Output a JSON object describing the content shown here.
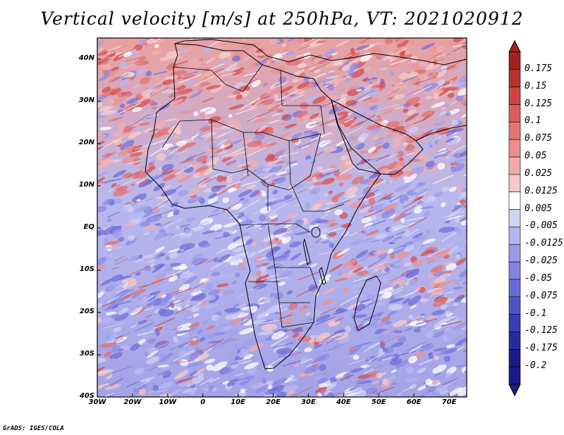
{
  "title": "Vertical velocity [m/s] at 250hPa, VT: 2021020912",
  "footer": "GrADS: IGES/COLA",
  "map": {
    "projection": "latlon",
    "lon_range": [
      -30,
      75
    ],
    "lat_range": [
      -40,
      45
    ],
    "lat_ticks": [
      {
        "value": 40,
        "label": "40N"
      },
      {
        "value": 30,
        "label": "30N"
      },
      {
        "value": 20,
        "label": "20N"
      },
      {
        "value": 10,
        "label": "10N"
      },
      {
        "value": 0,
        "label": "EQ"
      },
      {
        "value": -10,
        "label": "10S"
      },
      {
        "value": -20,
        "label": "20S"
      },
      {
        "value": -30,
        "label": "30S"
      },
      {
        "value": -40,
        "label": "40S"
      }
    ],
    "lon_ticks": [
      {
        "value": -30,
        "label": "30W"
      },
      {
        "value": -20,
        "label": "20W"
      },
      {
        "value": -10,
        "label": "10W"
      },
      {
        "value": 0,
        "label": "0"
      },
      {
        "value": 10,
        "label": "10E"
      },
      {
        "value": 20,
        "label": "20E"
      },
      {
        "value": 30,
        "label": "30E"
      },
      {
        "value": 40,
        "label": "40E"
      },
      {
        "value": 50,
        "label": "50E"
      },
      {
        "value": 60,
        "label": "60E"
      },
      {
        "value": 70,
        "label": "70E"
      }
    ]
  },
  "colorbar": {
    "labels": [
      "0.175",
      "0.15",
      "0.125",
      "0.1",
      "0.075",
      "0.05",
      "0.025",
      "0.0125",
      "0.005",
      "-0.005",
      "-0.0125",
      "-0.025",
      "-0.05",
      "-0.075",
      "-0.1",
      "-0.125",
      "-0.175",
      "-0.2"
    ],
    "colors": [
      "#a41f1f",
      "#b83030",
      "#cc4646",
      "#d95e5e",
      "#e37474",
      "#eb8f8f",
      "#f2aaaa",
      "#f7c8c8",
      "#ffffff",
      "#d2d2f5",
      "#b4b4ee",
      "#9b9be8",
      "#8282e0",
      "#6a6ad6",
      "#5252c8",
      "#3c3cb6",
      "#2a2aa0",
      "#1a1a8a",
      "#1a1a8a"
    ]
  }
}
